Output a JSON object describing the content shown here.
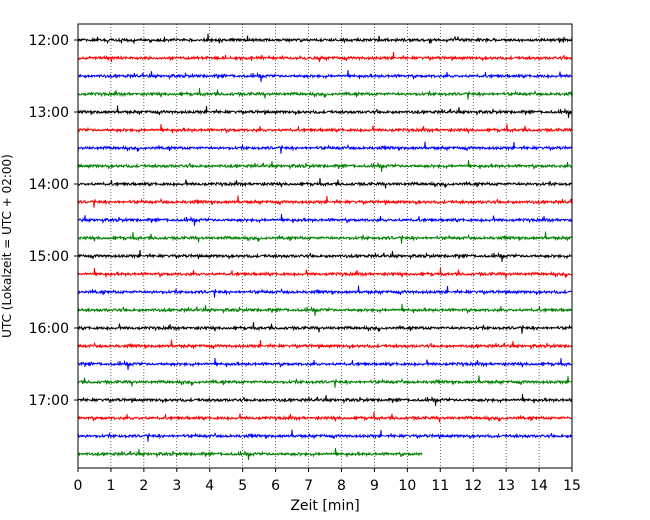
{
  "chart_data": {
    "type": "line",
    "title": "",
    "xlabel": "Zeit  [min]",
    "ylabel": "UTC (Lokalzeit = UTC + 02:00)",
    "xlim": [
      0,
      15
    ],
    "x_ticks": [
      0,
      1,
      2,
      3,
      4,
      5,
      6,
      7,
      8,
      9,
      10,
      11,
      12,
      13,
      14,
      15
    ],
    "y_tick_labels": [
      "12:00",
      "13:00",
      "14:00",
      "15:00",
      "16:00",
      "17:00"
    ],
    "grid": "vertical dotted at each minute",
    "row_colors": [
      "#000000",
      "#ff0000",
      "#0000ff",
      "#008000"
    ],
    "rows": [
      {
        "label": "12:00",
        "color": "#000000",
        "x_end": 15
      },
      {
        "label": "12:15",
        "color": "#ff0000",
        "x_end": 15
      },
      {
        "label": "12:30",
        "color": "#0000ff",
        "x_end": 15
      },
      {
        "label": "12:45",
        "color": "#008000",
        "x_end": 15
      },
      {
        "label": "13:00",
        "color": "#000000",
        "x_end": 15
      },
      {
        "label": "13:15",
        "color": "#ff0000",
        "x_end": 15
      },
      {
        "label": "13:30",
        "color": "#0000ff",
        "x_end": 15
      },
      {
        "label": "13:45",
        "color": "#008000",
        "x_end": 15
      },
      {
        "label": "14:00",
        "color": "#000000",
        "x_end": 15
      },
      {
        "label": "14:15",
        "color": "#ff0000",
        "x_end": 15
      },
      {
        "label": "14:30",
        "color": "#0000ff",
        "x_end": 15
      },
      {
        "label": "14:45",
        "color": "#008000",
        "x_end": 15
      },
      {
        "label": "15:00",
        "color": "#000000",
        "x_end": 15
      },
      {
        "label": "15:15",
        "color": "#ff0000",
        "x_end": 15
      },
      {
        "label": "15:30",
        "color": "#0000ff",
        "x_end": 15
      },
      {
        "label": "15:45",
        "color": "#008000",
        "x_end": 15
      },
      {
        "label": "16:00",
        "color": "#000000",
        "x_end": 15
      },
      {
        "label": "16:15",
        "color": "#ff0000",
        "x_end": 15
      },
      {
        "label": "16:30",
        "color": "#0000ff",
        "x_end": 15
      },
      {
        "label": "16:45",
        "color": "#008000",
        "x_end": 15
      },
      {
        "label": "17:00",
        "color": "#000000",
        "x_end": 15
      },
      {
        "label": "17:15",
        "color": "#ff0000",
        "x_end": 15
      },
      {
        "label": "17:30",
        "color": "#0000ff",
        "x_end": 15
      },
      {
        "label": "17:45",
        "color": "#008000",
        "x_end": 10.45
      }
    ]
  }
}
